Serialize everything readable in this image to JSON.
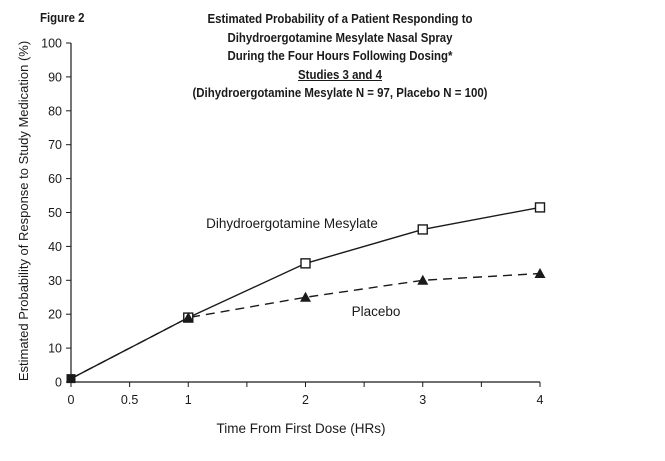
{
  "figure_label": "Figure 2",
  "title_lines": [
    "Estimated Probability of a Patient Responding to",
    "Dihydroergotamine Mesylate Nasal Spray",
    "During the Four Hours Following Dosing*",
    "Studies 3 and 4",
    "(Dihydroergotamine Mesylate N = 97, Placebo N = 100)"
  ],
  "chart_data": {
    "type": "line",
    "title": "Estimated Probability of a Patient Responding to Dihydroergotamine Mesylate Nasal Spray During the Four Hours Following Dosing* Studies 3 and 4 (Dihydroergotamine Mesylate N = 97, Placebo N = 100)",
    "xlabel": "Time From First Dose (HRs)",
    "ylabel": "Estimated Probability of Response to Study Medication (%)",
    "xlim": [
      0,
      4
    ],
    "ylim": [
      0,
      100
    ],
    "x_ticks": [
      0,
      0.5,
      1,
      2,
      3,
      4
    ],
    "x_tick_labels": [
      "0",
      "0.5",
      "1",
      "2",
      "3",
      "4"
    ],
    "y_ticks": [
      0,
      10,
      20,
      30,
      40,
      50,
      60,
      70,
      80,
      90,
      100
    ],
    "y_tick_labels": [
      "0",
      "10",
      "20",
      "30",
      "40",
      "50",
      "60",
      "70",
      "80",
      "90",
      "100"
    ],
    "grid": false,
    "series": [
      {
        "name": "Dihydroergotamine Mesylate",
        "line_style": "solid",
        "marker": "open-square",
        "color": "#1a1a1a",
        "x": [
          0,
          1,
          2,
          3,
          4
        ],
        "y": [
          1,
          19,
          35,
          45,
          51.5
        ]
      },
      {
        "name": "Placebo",
        "line_style": "dashed",
        "marker": "filled-triangle",
        "color": "#1a1a1a",
        "x": [
          0,
          1,
          2,
          3,
          4
        ],
        "y": [
          1,
          19,
          25,
          30,
          32
        ]
      }
    ]
  }
}
